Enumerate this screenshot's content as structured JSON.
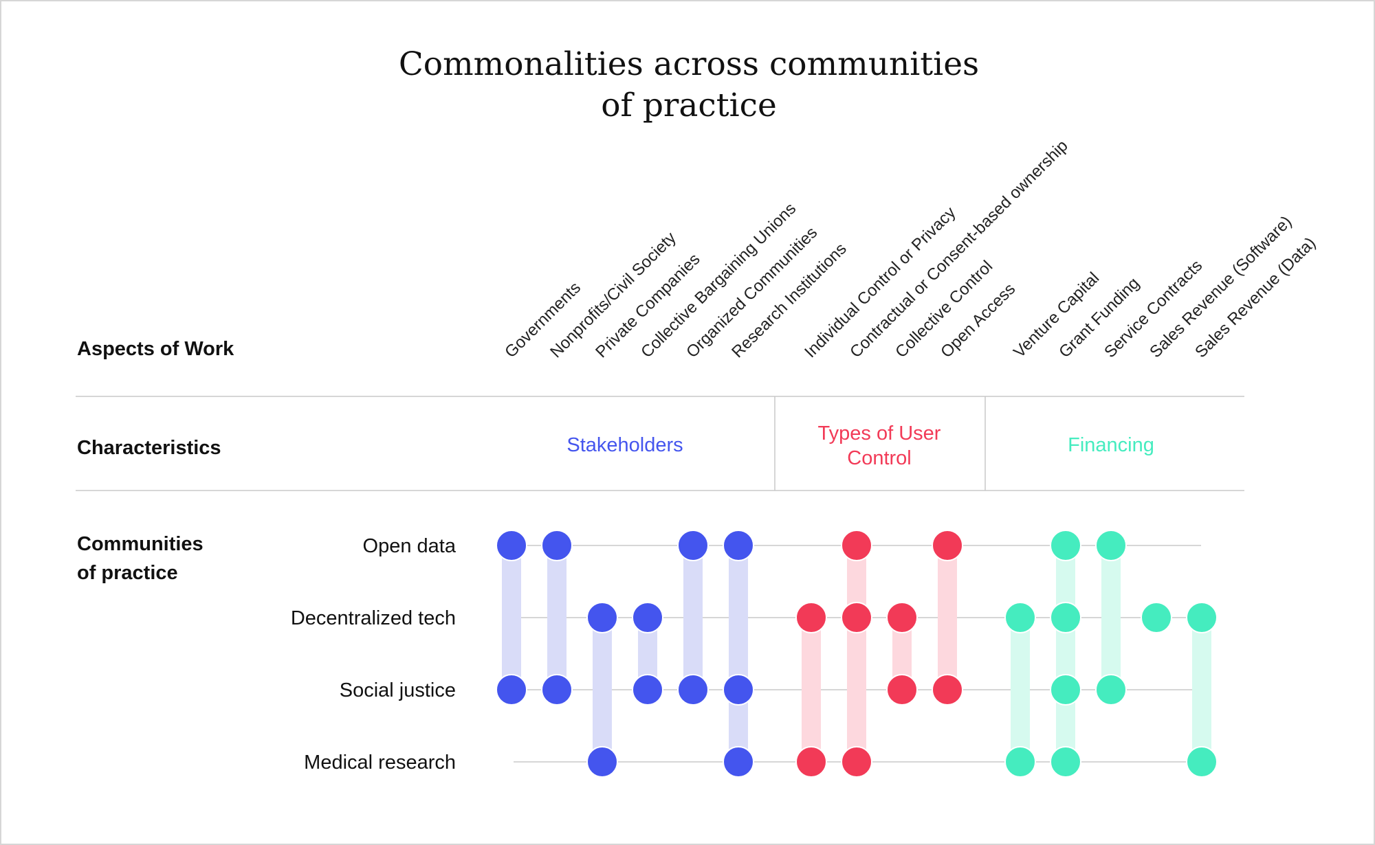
{
  "title": {
    "line1": "Commonalities across communities",
    "line2": "of practice"
  },
  "rows": {
    "aspects": "Aspects of Work",
    "characteristics": "Characteristics",
    "communities_line1": "Communities",
    "communities_line2": "of practice"
  },
  "colors": {
    "stakeholders": "#4455ee",
    "stakeholders_bar": "#d9dcf8",
    "user_control": "#f23a57",
    "user_control_bar": "#fdd8de",
    "financing": "#45ecbf",
    "financing_bar": "#d6faef",
    "rule": "#c8c8c8"
  },
  "chart_data": {
    "type": "dot-matrix",
    "communities": [
      "Open data",
      "Decentralized tech",
      "Social justice",
      "Medical research"
    ],
    "groups": [
      {
        "name_line1": "Stakeholders",
        "name_line2": "",
        "color_key": "stakeholders",
        "columns": [
          {
            "label": "Governments",
            "present": [
              "Open data",
              "Social justice"
            ]
          },
          {
            "label": "Nonprofits/Civil Society",
            "present": [
              "Open data",
              "Social justice"
            ]
          },
          {
            "label": "Private Companies",
            "present": [
              "Decentralized tech",
              "Medical research"
            ]
          },
          {
            "label": "Collective Bargaining Unions",
            "present": [
              "Decentralized tech",
              "Social justice"
            ]
          },
          {
            "label": "Organized Communities",
            "present": [
              "Open data",
              "Social justice"
            ]
          },
          {
            "label": "Research Institutions",
            "present": [
              "Open data",
              "Social justice",
              "Medical research"
            ]
          }
        ]
      },
      {
        "name_line1": "Types of User",
        "name_line2": "Control",
        "color_key": "user_control",
        "columns": [
          {
            "label": "Individual Control or Privacy",
            "present": [
              "Decentralized tech",
              "Medical research"
            ]
          },
          {
            "label": "Contractual or Consent-based ownership",
            "present": [
              "Open data",
              "Decentralized tech",
              "Medical research"
            ]
          },
          {
            "label": "Collective Control",
            "present": [
              "Decentralized tech",
              "Social justice"
            ]
          },
          {
            "label": "Open Access",
            "present": [
              "Open data",
              "Social justice"
            ]
          }
        ]
      },
      {
        "name_line1": "Financing",
        "name_line2": "",
        "color_key": "financing",
        "columns": [
          {
            "label": "Venture Capital",
            "present": [
              "Decentralized tech",
              "Medical research"
            ]
          },
          {
            "label": "Grant Funding",
            "present": [
              "Open data",
              "Decentralized tech",
              "Social justice",
              "Medical research"
            ]
          },
          {
            "label": "Service Contracts",
            "present": [
              "Open data",
              "Social justice"
            ]
          },
          {
            "label": "Sales Revenue (Software)",
            "present": [
              "Decentralized tech"
            ]
          },
          {
            "label": "Sales Revenue (Data)",
            "present": [
              "Decentralized tech",
              "Medical research"
            ]
          }
        ]
      }
    ]
  }
}
